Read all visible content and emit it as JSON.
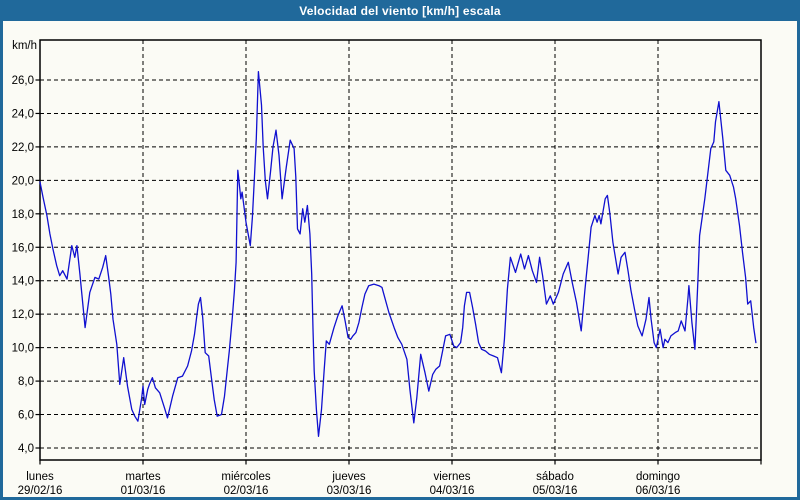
{
  "window": {
    "title": "Velocidad del viento [km/h] escala",
    "colors": {
      "title_bar": "#20699b",
      "border": "#20699b",
      "background": "#fbfbf5",
      "grid": "#000000",
      "frame": "#000000",
      "line": "#1010d0",
      "text": "#000000",
      "title_text": "#ffffff"
    }
  },
  "chart_data": {
    "type": "line",
    "title": "Velocidad del viento [km/h] escala",
    "grid": "dashed",
    "legend": "none",
    "y_axis": {
      "label": "km/h",
      "min": 4,
      "max": 26,
      "tick_step": 2,
      "tick_labels": [
        "26,0",
        "24,0",
        "22,0",
        "20,0",
        "18,0",
        "16,0",
        "14,0",
        "12,0",
        "10,0",
        "8,0",
        "6,0",
        "4,0"
      ]
    },
    "x_axis": {
      "unit": "hours",
      "total_hours": 168,
      "days": [
        {
          "name": "lunes",
          "date": "29/02/16"
        },
        {
          "name": "martes",
          "date": "01/03/16"
        },
        {
          "name": "miércoles",
          "date": "02/03/16"
        },
        {
          "name": "jueves",
          "date": "03/03/16"
        },
        {
          "name": "viernes",
          "date": "04/03/16"
        },
        {
          "name": "sábado",
          "date": "05/03/16"
        },
        {
          "name": "domingo",
          "date": "06/03/16"
        }
      ]
    },
    "series": [
      {
        "name": "Velocidad del viento [km/h]",
        "color": "#1010d0",
        "points": [
          [
            0,
            19.9
          ],
          [
            0.7,
            19.0
          ],
          [
            1.6,
            17.9
          ],
          [
            2.3,
            16.8
          ],
          [
            3,
            15.9
          ],
          [
            3.9,
            14.9
          ],
          [
            4.6,
            14.3
          ],
          [
            5.3,
            14.6
          ],
          [
            6.3,
            14.1
          ],
          [
            7.4,
            16.1
          ],
          [
            8.1,
            15.4
          ],
          [
            8.6,
            16.1
          ],
          [
            9.3,
            14.4
          ],
          [
            10.5,
            11.2
          ],
          [
            11.6,
            13.3
          ],
          [
            12.8,
            14.2
          ],
          [
            13.7,
            14.1
          ],
          [
            14.6,
            14.8
          ],
          [
            15.3,
            15.5
          ],
          [
            16,
            14.2
          ],
          [
            16.5,
            13.2
          ],
          [
            17,
            11.7
          ],
          [
            17.9,
            10.2
          ],
          [
            18.6,
            7.8
          ],
          [
            19.5,
            9.4
          ],
          [
            20.4,
            7.7
          ],
          [
            21.4,
            6.3
          ],
          [
            22.1,
            5.9
          ],
          [
            22.8,
            5.6
          ],
          [
            23.7,
            7.0
          ],
          [
            24,
            7.7
          ],
          [
            24.4,
            6.6
          ],
          [
            25.1,
            7.5
          ],
          [
            25.5,
            7.8
          ],
          [
            26.2,
            8.2
          ],
          [
            26.9,
            7.6
          ],
          [
            27.9,
            7.3
          ],
          [
            29,
            6.4
          ],
          [
            29.7,
            5.8
          ],
          [
            30.9,
            7.1
          ],
          [
            32.1,
            8.2
          ],
          [
            33.2,
            8.3
          ],
          [
            34.4,
            8.9
          ],
          [
            35.3,
            9.8
          ],
          [
            36,
            10.8
          ],
          [
            36.5,
            11.8
          ],
          [
            36.9,
            12.6
          ],
          [
            37.4,
            13.0
          ],
          [
            37.9,
            11.8
          ],
          [
            38.5,
            9.7
          ],
          [
            39.3,
            9.5
          ],
          [
            39.9,
            8.3
          ],
          [
            40.6,
            6.9
          ],
          [
            41.3,
            5.9
          ],
          [
            42.3,
            6.0
          ],
          [
            43,
            7.1
          ],
          [
            43.7,
            8.8
          ],
          [
            44.1,
            9.8
          ],
          [
            44.8,
            11.8
          ],
          [
            45.3,
            13.4
          ],
          [
            45.7,
            15.1
          ],
          [
            45.9,
            18.0
          ],
          [
            46.1,
            20.6
          ],
          [
            46.4,
            19.9
          ],
          [
            46.8,
            18.9
          ],
          [
            47.1,
            19.3
          ],
          [
            48,
            17.5
          ],
          [
            49,
            16.1
          ],
          [
            49.5,
            17.8
          ],
          [
            49.9,
            19.9
          ],
          [
            50.4,
            22.5
          ],
          [
            50.9,
            26.5
          ],
          [
            51.6,
            24.5
          ],
          [
            52,
            22.0
          ],
          [
            52.5,
            20.0
          ],
          [
            53,
            18.9
          ],
          [
            53.7,
            20.5
          ],
          [
            54.3,
            22.0
          ],
          [
            55,
            23.0
          ],
          [
            55.7,
            21.5
          ],
          [
            56.4,
            18.9
          ],
          [
            57.4,
            20.8
          ],
          [
            58.3,
            22.4
          ],
          [
            59.2,
            21.9
          ],
          [
            59.6,
            20.2
          ],
          [
            60,
            17.1
          ],
          [
            60.6,
            16.8
          ],
          [
            61.2,
            18.3
          ],
          [
            61.7,
            17.5
          ],
          [
            62.3,
            18.5
          ],
          [
            62.9,
            16.8
          ],
          [
            63.3,
            14.4
          ],
          [
            63.6,
            11.1
          ],
          [
            63.9,
            8.6
          ],
          [
            64.4,
            6.3
          ],
          [
            64.9,
            4.7
          ],
          [
            65.6,
            6.3
          ],
          [
            66.2,
            8.6
          ],
          [
            66.7,
            10.4
          ],
          [
            67.4,
            10.2
          ],
          [
            68.5,
            11.2
          ],
          [
            69.4,
            11.9
          ],
          [
            70.4,
            12.5
          ],
          [
            71.1,
            11.6
          ],
          [
            71.8,
            10.6
          ],
          [
            72.4,
            10.5
          ],
          [
            72.9,
            10.7
          ],
          [
            73.6,
            10.9
          ],
          [
            74.3,
            11.5
          ],
          [
            75,
            12.4
          ],
          [
            75.7,
            13.2
          ],
          [
            76.6,
            13.7
          ],
          [
            77.8,
            13.8
          ],
          [
            79,
            13.7
          ],
          [
            79.7,
            13.6
          ],
          [
            80.1,
            13.2
          ],
          [
            81.3,
            12.1
          ],
          [
            82.5,
            11.2
          ],
          [
            83.4,
            10.6
          ],
          [
            84.3,
            10.2
          ],
          [
            85.5,
            9.3
          ],
          [
            86.2,
            7.5
          ],
          [
            87.1,
            5.5
          ],
          [
            87.8,
            7.0
          ],
          [
            88.7,
            9.6
          ],
          [
            89.7,
            8.5
          ],
          [
            90.6,
            7.4
          ],
          [
            91.5,
            8.4
          ],
          [
            92.2,
            8.7
          ],
          [
            93.1,
            8.9
          ],
          [
            93.8,
            9.8
          ],
          [
            94.5,
            10.7
          ],
          [
            95.5,
            10.8
          ],
          [
            96.4,
            10.1
          ],
          [
            97.1,
            10.0
          ],
          [
            98,
            10.3
          ],
          [
            98.5,
            11.2
          ],
          [
            98.9,
            12.5
          ],
          [
            99.4,
            13.3
          ],
          [
            100.1,
            13.3
          ],
          [
            100.8,
            12.4
          ],
          [
            101.5,
            11.4
          ],
          [
            102.2,
            10.3
          ],
          [
            102.9,
            9.9
          ],
          [
            103.8,
            9.8
          ],
          [
            104.7,
            9.6
          ],
          [
            105.7,
            9.5
          ],
          [
            106.6,
            9.4
          ],
          [
            107.5,
            8.5
          ],
          [
            108.2,
            10.5
          ],
          [
            108.9,
            13.5
          ],
          [
            109.6,
            15.4
          ],
          [
            110.8,
            14.5
          ],
          [
            112,
            15.6
          ],
          [
            112.9,
            14.7
          ],
          [
            113.8,
            15.5
          ],
          [
            114.7,
            14.6
          ],
          [
            115.7,
            13.9
          ],
          [
            116.4,
            15.4
          ],
          [
            117.1,
            14.3
          ],
          [
            118,
            12.6
          ],
          [
            118.9,
            13.1
          ],
          [
            119.6,
            12.6
          ],
          [
            120.8,
            13.3
          ],
          [
            121.9,
            14.4
          ],
          [
            123.1,
            15.1
          ],
          [
            124,
            13.9
          ],
          [
            125,
            12.7
          ],
          [
            126.1,
            11.0
          ],
          [
            127,
            13.5
          ],
          [
            127.7,
            15.3
          ],
          [
            128.4,
            17.2
          ],
          [
            129.3,
            17.9
          ],
          [
            129.8,
            17.5
          ],
          [
            130.3,
            17.9
          ],
          [
            130.7,
            17.4
          ],
          [
            131.7,
            18.9
          ],
          [
            132.2,
            19.1
          ],
          [
            132.8,
            18.0
          ],
          [
            133.5,
            16.3
          ],
          [
            134.7,
            14.4
          ],
          [
            135.4,
            15.4
          ],
          [
            136.3,
            15.7
          ],
          [
            137,
            14.6
          ],
          [
            137.7,
            13.4
          ],
          [
            138.6,
            12.2
          ],
          [
            139.3,
            11.3
          ],
          [
            140.3,
            10.7
          ],
          [
            141.2,
            11.7
          ],
          [
            141.9,
            13.0
          ],
          [
            142.4,
            11.7
          ],
          [
            143.1,
            10.3
          ],
          [
            143.6,
            10.0
          ],
          [
            144.5,
            11.1
          ],
          [
            145.2,
            10.0
          ],
          [
            145.6,
            10.5
          ],
          [
            146.3,
            10.3
          ],
          [
            147,
            10.7
          ],
          [
            148,
            10.9
          ],
          [
            148.7,
            11.0
          ],
          [
            149.4,
            11.6
          ],
          [
            150.3,
            11.0
          ],
          [
            151,
            13.0
          ],
          [
            151.2,
            13.7
          ],
          [
            151.9,
            11.5
          ],
          [
            152.6,
            9.9
          ],
          [
            153.3,
            14.0
          ],
          [
            153.7,
            16.7
          ],
          [
            154.9,
            18.9
          ],
          [
            155.6,
            20.4
          ],
          [
            156.3,
            21.9
          ],
          [
            157,
            22.3
          ],
          [
            157.4,
            23.5
          ],
          [
            158.2,
            24.7
          ],
          [
            159.1,
            22.5
          ],
          [
            159.8,
            20.6
          ],
          [
            160.7,
            20.3
          ],
          [
            161.6,
            19.6
          ],
          [
            162.1,
            18.9
          ],
          [
            163,
            17.3
          ],
          [
            163.7,
            15.7
          ],
          [
            164.4,
            14.2
          ],
          [
            164.9,
            12.6
          ],
          [
            165.6,
            12.8
          ],
          [
            166.3,
            11.2
          ],
          [
            166.8,
            10.3
          ]
        ]
      }
    ]
  }
}
